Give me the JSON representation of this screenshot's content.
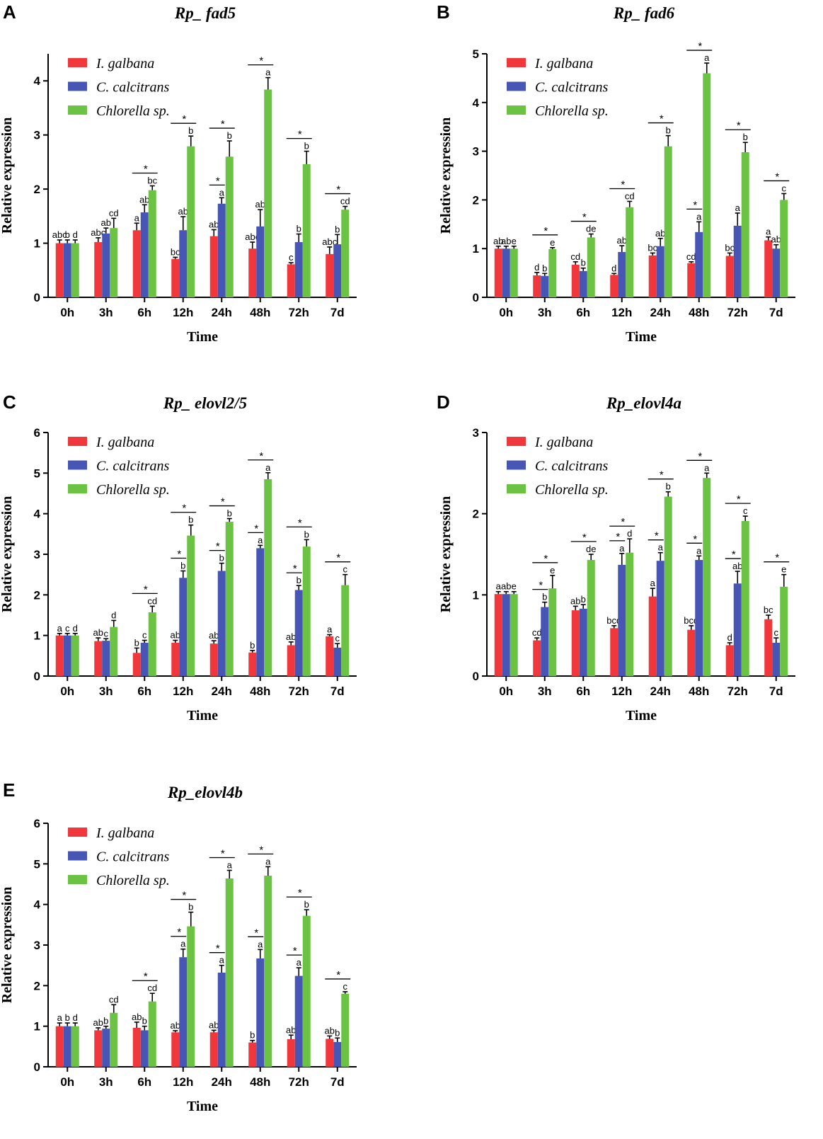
{
  "colors": {
    "I. galbana": "#f0373c",
    "C. calcitrans": "#4756b5",
    "Chlorella sp.": "#6cc242"
  },
  "chart_data": [
    {
      "panel": "A",
      "title": "Rp_ fad5",
      "type": "bar",
      "xlabel": "Time",
      "ylabel": "Relative expression",
      "ylim": [
        0,
        4.5
      ],
      "yticks": [
        0,
        1,
        2,
        3,
        4
      ],
      "categories": [
        "0h",
        "3h",
        "6h",
        "12h",
        "24h",
        "48h",
        "72h",
        "7d"
      ],
      "series": [
        {
          "name": "I. galbana",
          "values": [
            1.0,
            1.02,
            1.24,
            0.71,
            1.13,
            0.9,
            0.61,
            0.8
          ],
          "errors": [
            0.06,
            0.08,
            0.13,
            0.03,
            0.12,
            0.12,
            0.03,
            0.13
          ],
          "letters": [
            "abc",
            "abc",
            "a",
            "bc",
            "ab",
            "abc",
            "c",
            "abc"
          ]
        },
        {
          "name": "C. calcitrans",
          "values": [
            1.0,
            1.18,
            1.57,
            1.24,
            1.73,
            1.31,
            1.02,
            0.98
          ],
          "errors": [
            0.06,
            0.1,
            0.14,
            0.25,
            0.11,
            0.31,
            0.15,
            0.18
          ],
          "letters": [
            "b",
            "ab",
            "ab",
            "ab",
            "a",
            "ab",
            "b",
            "b"
          ]
        },
        {
          "name": "Chlorella sp.",
          "values": [
            1.0,
            1.28,
            1.98,
            2.79,
            2.6,
            3.84,
            2.46,
            1.62
          ],
          "errors": [
            0.06,
            0.18,
            0.08,
            0.19,
            0.29,
            0.22,
            0.24,
            0.06
          ],
          "letters": [
            "d",
            "cd",
            "bc",
            "b",
            "b",
            "a",
            "b",
            "cd"
          ]
        }
      ],
      "stars": [
        {
          "index": 2,
          "groups": [
            [
              0,
              2
            ]
          ]
        },
        {
          "index": 3,
          "groups": [
            [
              0,
              2
            ]
          ]
        },
        {
          "index": 4,
          "groups": [
            [
              0,
              1
            ],
            [
              0,
              2
            ]
          ]
        },
        {
          "index": 5,
          "groups": [
            [
              0,
              2
            ]
          ]
        },
        {
          "index": 6,
          "groups": [
            [
              0,
              2
            ]
          ]
        },
        {
          "index": 7,
          "groups": [
            [
              0,
              2
            ]
          ]
        }
      ]
    },
    {
      "panel": "B",
      "title": "Rp_ fad6",
      "type": "bar",
      "xlabel": "Time",
      "ylabel": "Relative expression",
      "ylim": [
        0,
        5
      ],
      "yticks": [
        0,
        1,
        2,
        3,
        4,
        5
      ],
      "categories": [
        "0h",
        "3h",
        "6h",
        "12h",
        "24h",
        "48h",
        "72h",
        "7d"
      ],
      "series": [
        {
          "name": "I. galbana",
          "values": [
            1.0,
            0.45,
            0.67,
            0.46,
            0.86,
            0.7,
            0.85,
            1.17
          ],
          "errors": [
            0.05,
            0.06,
            0.06,
            0.03,
            0.05,
            0.03,
            0.06,
            0.07
          ],
          "letters": [
            "ab",
            "d",
            "cd",
            "d",
            "bc",
            "cd",
            "bc",
            "a"
          ]
        },
        {
          "name": "C. calcitrans",
          "values": [
            1.0,
            0.44,
            0.54,
            0.93,
            1.05,
            1.34,
            1.47,
            1.0
          ],
          "errors": [
            0.05,
            0.05,
            0.06,
            0.13,
            0.16,
            0.21,
            0.26,
            0.08
          ],
          "letters": [
            "ab",
            "b",
            "b",
            "ab",
            "ab",
            "a",
            "a",
            "ab"
          ]
        },
        {
          "name": "Chlorella sp.",
          "values": [
            1.0,
            0.99,
            1.23,
            1.85,
            3.1,
            4.6,
            2.98,
            2.0
          ],
          "errors": [
            0.05,
            0.03,
            0.07,
            0.12,
            0.22,
            0.21,
            0.2,
            0.13
          ],
          "letters": [
            "e",
            "e",
            "de",
            "cd",
            "b",
            "a",
            "b",
            "c"
          ]
        }
      ],
      "stars": [
        {
          "index": 1,
          "groups": [
            [
              0,
              2
            ]
          ]
        },
        {
          "index": 2,
          "groups": [
            [
              0,
              2
            ]
          ]
        },
        {
          "index": 3,
          "groups": [
            [
              0,
              2
            ]
          ]
        },
        {
          "index": 4,
          "groups": [
            [
              0,
              2
            ]
          ]
        },
        {
          "index": 5,
          "groups": [
            [
              0,
              1
            ],
            [
              0,
              2
            ]
          ]
        },
        {
          "index": 6,
          "groups": [
            [
              0,
              2
            ]
          ]
        },
        {
          "index": 7,
          "groups": [
            [
              0,
              2
            ]
          ]
        }
      ]
    },
    {
      "panel": "C",
      "title": "Rp_ elovl2/5",
      "type": "bar",
      "xlabel": "Time",
      "ylabel": "Relative expression",
      "ylim": [
        0,
        6
      ],
      "yticks": [
        0,
        1,
        2,
        3,
        4,
        5,
        6
      ],
      "categories": [
        "0h",
        "3h",
        "6h",
        "12h",
        "24h",
        "48h",
        "72h",
        "7d"
      ],
      "series": [
        {
          "name": "I. galbana",
          "values": [
            1.0,
            0.86,
            0.57,
            0.82,
            0.8,
            0.58,
            0.76,
            0.98
          ],
          "errors": [
            0.05,
            0.08,
            0.12,
            0.06,
            0.07,
            0.05,
            0.08,
            0.04
          ],
          "letters": [
            "a",
            "ab",
            "b",
            "ab",
            "ab",
            "b",
            "ab",
            "a"
          ]
        },
        {
          "name": "C. calcitrans",
          "values": [
            1.0,
            0.87,
            0.82,
            2.42,
            2.59,
            3.15,
            2.12,
            0.7
          ],
          "errors": [
            0.05,
            0.05,
            0.06,
            0.17,
            0.19,
            0.07,
            0.11,
            0.1
          ],
          "letters": [
            "c",
            "c",
            "c",
            "b",
            "b",
            "a",
            "b",
            "c"
          ]
        },
        {
          "name": "Chlorella sp.",
          "values": [
            1.0,
            1.21,
            1.57,
            3.46,
            3.8,
            4.85,
            3.19,
            2.24
          ],
          "errors": [
            0.05,
            0.16,
            0.15,
            0.26,
            0.08,
            0.16,
            0.17,
            0.26
          ],
          "letters": [
            "d",
            "d",
            "cd",
            "b",
            "b",
            "a",
            "b",
            "c"
          ]
        }
      ],
      "stars": [
        {
          "index": 2,
          "groups": [
            [
              0,
              2
            ]
          ]
        },
        {
          "index": 3,
          "groups": [
            [
              0,
              1
            ],
            [
              0,
              2
            ]
          ]
        },
        {
          "index": 4,
          "groups": [
            [
              0,
              1
            ],
            [
              0,
              2
            ]
          ]
        },
        {
          "index": 5,
          "groups": [
            [
              0,
              1
            ],
            [
              0,
              2
            ]
          ]
        },
        {
          "index": 6,
          "groups": [
            [
              0,
              1
            ],
            [
              0,
              2
            ]
          ]
        },
        {
          "index": 7,
          "groups": [
            [
              0,
              2
            ]
          ]
        }
      ]
    },
    {
      "panel": "D",
      "title": "Rp_elovl4a",
      "type": "bar",
      "xlabel": "Time",
      "ylabel": "Relative expression",
      "ylim": [
        0,
        3
      ],
      "yticks": [
        0,
        1,
        2,
        3
      ],
      "categories": [
        "0h",
        "3h",
        "6h",
        "12h",
        "24h",
        "48h",
        "72h",
        "7d"
      ],
      "series": [
        {
          "name": "I. galbana",
          "values": [
            1.01,
            0.44,
            0.81,
            0.59,
            0.98,
            0.57,
            0.38,
            0.7
          ],
          "errors": [
            0.03,
            0.03,
            0.05,
            0.03,
            0.1,
            0.05,
            0.03,
            0.05
          ],
          "letters": [
            "a",
            "cd",
            "ab",
            "bcd",
            "a",
            "bcd",
            "d",
            "bc"
          ]
        },
        {
          "name": "C. calcitrans",
          "values": [
            1.01,
            0.85,
            0.83,
            1.37,
            1.42,
            1.43,
            1.14,
            0.41
          ],
          "errors": [
            0.03,
            0.06,
            0.05,
            0.14,
            0.1,
            0.05,
            0.15,
            0.06
          ],
          "letters": [
            "ab",
            "b",
            "b",
            "a",
            "a",
            "a",
            "ab",
            "c"
          ]
        },
        {
          "name": "Chlorella sp.",
          "values": [
            1.01,
            1.08,
            1.43,
            1.52,
            2.21,
            2.44,
            1.91,
            1.1
          ],
          "errors": [
            0.03,
            0.16,
            0.07,
            0.17,
            0.06,
            0.06,
            0.06,
            0.15
          ],
          "letters": [
            "e",
            "e",
            "de",
            "d",
            "b",
            "a",
            "c",
            "e"
          ]
        }
      ],
      "stars": [
        {
          "index": 1,
          "groups": [
            [
              0,
              1
            ],
            [
              0,
              2
            ]
          ]
        },
        {
          "index": 2,
          "groups": [
            [
              0,
              2
            ]
          ]
        },
        {
          "index": 3,
          "groups": [
            [
              0,
              1
            ],
            [
              0,
              2
            ]
          ]
        },
        {
          "index": 4,
          "groups": [
            [
              0,
              1
            ],
            [
              0,
              2
            ]
          ]
        },
        {
          "index": 5,
          "groups": [
            [
              0,
              1
            ],
            [
              0,
              2
            ]
          ]
        },
        {
          "index": 6,
          "groups": [
            [
              0,
              1
            ],
            [
              0,
              2
            ]
          ]
        },
        {
          "index": 7,
          "groups": [
            [
              0,
              2
            ]
          ]
        }
      ]
    },
    {
      "panel": "E",
      "title": "Rp_elovl4b",
      "type": "bar",
      "xlabel": "Time",
      "ylabel": "Relative expression",
      "ylim": [
        0,
        6
      ],
      "yticks": [
        0,
        1,
        2,
        3,
        4,
        5,
        6
      ],
      "categories": [
        "0h",
        "3h",
        "6h",
        "12h",
        "24h",
        "48h",
        "72h",
        "7d"
      ],
      "series": [
        {
          "name": "I. galbana",
          "values": [
            1.0,
            0.9,
            0.96,
            0.85,
            0.85,
            0.6,
            0.68,
            0.69
          ],
          "errors": [
            0.08,
            0.06,
            0.14,
            0.04,
            0.05,
            0.05,
            0.1,
            0.07
          ],
          "letters": [
            "a",
            "ab",
            "ab",
            "ab",
            "ab",
            "b",
            "ab",
            "ab"
          ]
        },
        {
          "name": "C. calcitrans",
          "values": [
            1.0,
            0.94,
            0.9,
            2.7,
            2.32,
            2.67,
            2.24,
            0.61
          ],
          "errors": [
            0.08,
            0.06,
            0.1,
            0.2,
            0.18,
            0.22,
            0.2,
            0.1
          ],
          "letters": [
            "b",
            "b",
            "b",
            "a",
            "a",
            "a",
            "a",
            "b"
          ]
        },
        {
          "name": "Chlorella sp.",
          "values": [
            1.0,
            1.33,
            1.61,
            3.46,
            4.64,
            4.71,
            3.72,
            1.8
          ],
          "errors": [
            0.08,
            0.2,
            0.2,
            0.35,
            0.2,
            0.22,
            0.15,
            0.05
          ],
          "letters": [
            "d",
            "cd",
            "cd",
            "b",
            "a",
            "a",
            "b",
            "c"
          ]
        }
      ],
      "stars": [
        {
          "index": 2,
          "groups": [
            [
              0,
              2
            ]
          ]
        },
        {
          "index": 3,
          "groups": [
            [
              0,
              1
            ],
            [
              0,
              2
            ]
          ]
        },
        {
          "index": 4,
          "groups": [
            [
              0,
              1
            ],
            [
              0,
              2
            ]
          ]
        },
        {
          "index": 5,
          "groups": [
            [
              0,
              1
            ],
            [
              0,
              2
            ]
          ]
        },
        {
          "index": 6,
          "groups": [
            [
              0,
              1
            ],
            [
              0,
              2
            ]
          ]
        },
        {
          "index": 7,
          "groups": [
            [
              0,
              2
            ]
          ]
        }
      ]
    }
  ]
}
